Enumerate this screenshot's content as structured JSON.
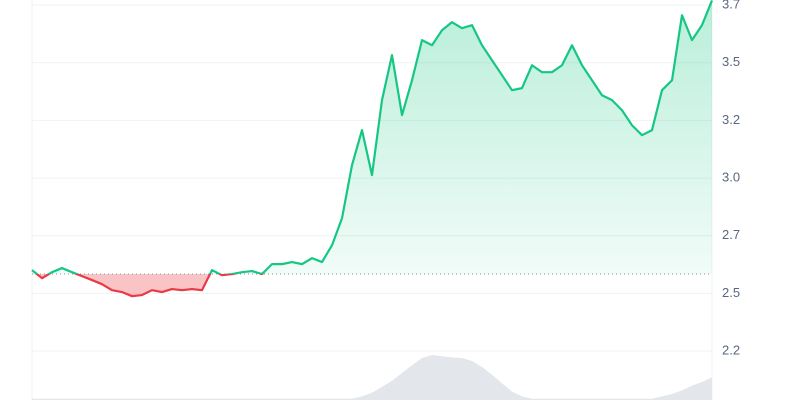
{
  "chart_data": {
    "type": "line",
    "values": [
      2.551,
      2.516,
      2.542,
      2.56,
      2.542,
      2.525,
      2.508,
      2.49,
      2.464,
      2.456,
      2.438,
      2.443,
      2.464,
      2.456,
      2.469,
      2.464,
      2.469,
      2.464,
      2.551,
      2.529,
      2.534,
      2.542,
      2.547,
      2.534,
      2.577,
      2.577,
      2.586,
      2.577,
      2.603,
      2.586,
      2.659,
      2.776,
      3.006,
      3.158,
      2.963,
      3.288,
      3.483,
      3.223,
      3.374,
      3.548,
      3.526,
      3.591,
      3.626,
      3.6,
      3.613,
      3.526,
      3.461,
      3.396,
      3.331,
      3.34,
      3.439,
      3.409,
      3.409,
      3.439,
      3.526,
      3.439,
      3.374,
      3.309,
      3.288,
      3.244,
      3.179,
      3.136,
      3.158,
      3.331,
      3.374,
      3.656,
      3.548,
      3.613,
      3.72
    ],
    "baseline": 2.534,
    "up_color": "#16c784",
    "down_color": "#ea3943",
    "volume": [
      2,
      2,
      2,
      2,
      2,
      2,
      2,
      2,
      2,
      2,
      2,
      2,
      2,
      2,
      2,
      2,
      2,
      2,
      2,
      2,
      2,
      2,
      2,
      2,
      2,
      2,
      2,
      2,
      2,
      2,
      2,
      2,
      2,
      6,
      12,
      22,
      32,
      45,
      58,
      70,
      75,
      73,
      71,
      70,
      65,
      55,
      42,
      28,
      14,
      6,
      2,
      2,
      2,
      2,
      2,
      2,
      2,
      2,
      2,
      2,
      2,
      2,
      2,
      6,
      10,
      16,
      24,
      30,
      38
    ],
    "volume_lim": [
      0,
      100
    ],
    "volume_color": "#e3e6ea",
    "ylim": [
      1.988,
      3.722
    ],
    "yticks": [
      {
        "value": 2.2,
        "label": "2.2"
      },
      {
        "value": 2.45,
        "label": "2.5"
      },
      {
        "value": 2.7,
        "label": "2.7"
      },
      {
        "value": 2.95,
        "label": "3.0"
      },
      {
        "value": 3.2,
        "label": "3.2"
      },
      {
        "value": 3.45,
        "label": "3.5"
      },
      {
        "value": 3.7,
        "label": "3.7"
      }
    ],
    "grid": true
  }
}
